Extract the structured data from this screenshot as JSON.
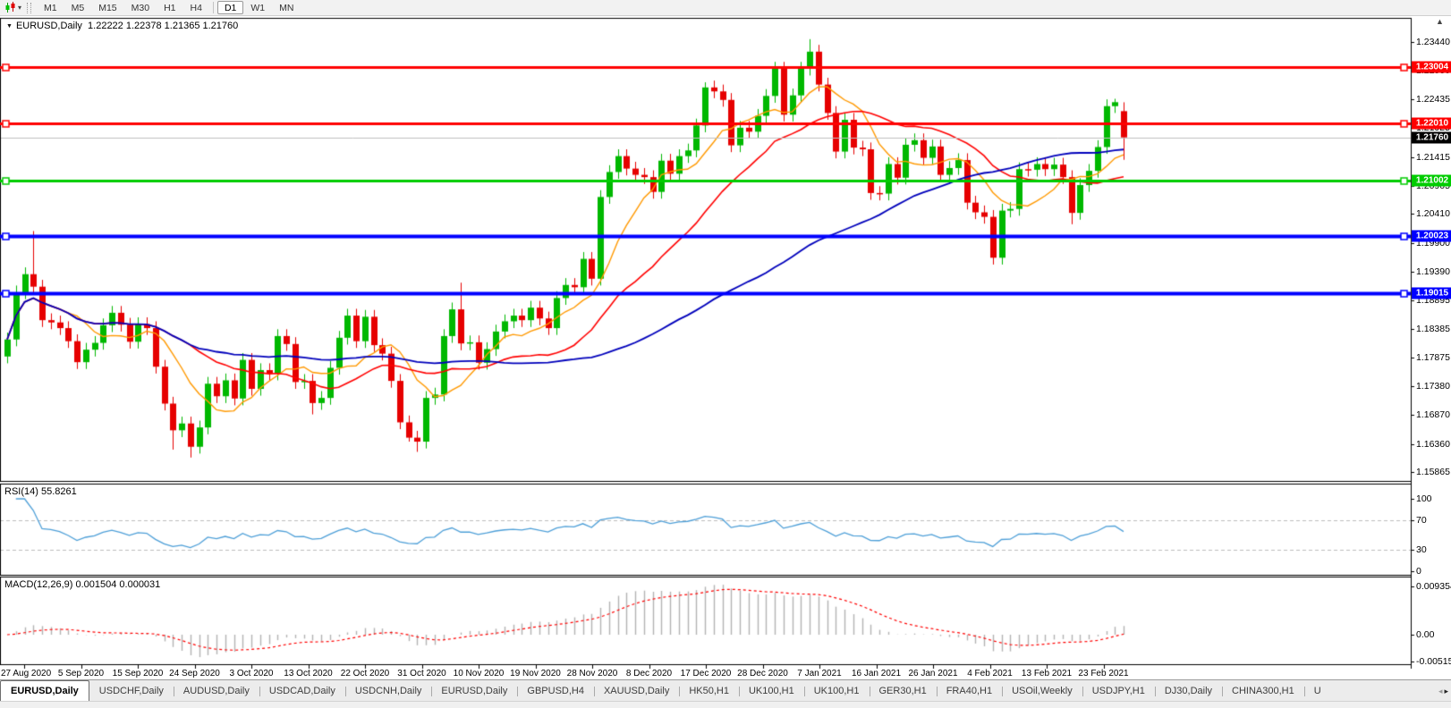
{
  "toolbar": {
    "timeframes": [
      "M1",
      "M5",
      "M15",
      "M30",
      "H1",
      "H4",
      "D1",
      "W1",
      "MN"
    ],
    "active_timeframe": "D1"
  },
  "chart": {
    "title": "EURUSD,Daily",
    "ohlc_text": "1.22222 1.22378 1.21365 1.21760",
    "current_price_label": "1.21760"
  },
  "price_axis": {
    "ticks": [
      "1.23440",
      "1.22930",
      "1.22435",
      "1.21925",
      "1.21415",
      "1.20905",
      "1.20410",
      "1.19900",
      "1.19390",
      "1.18895",
      "1.18385",
      "1.17875",
      "1.17380",
      "1.16870",
      "1.16360",
      "1.15865"
    ]
  },
  "date_axis": [
    "27 Aug 2020",
    "5 Sep 2020",
    "15 Sep 2020",
    "24 Sep 2020",
    "3 Oct 2020",
    "13 Oct 2020",
    "22 Oct 2020",
    "31 Oct 2020",
    "10 Nov 2020",
    "19 Nov 2020",
    "28 Nov 2020",
    "8 Dec 2020",
    "17 Dec 2020",
    "28 Dec 2020",
    "7 Jan 2021",
    "16 Jan 2021",
    "26 Jan 2021",
    "4 Feb 2021",
    "13 Feb 2021",
    "23 Feb 2021"
  ],
  "tabs": {
    "items": [
      "EURUSD,Daily",
      "USDCHF,Daily",
      "AUDUSD,Daily",
      "USDCAD,Daily",
      "USDCNH,Daily",
      "EURUSD,Daily",
      "GBPUSD,H4",
      "XAUUSD,Daily",
      "HK50,H1",
      "UK100,H1",
      "UK100,H1",
      "GER30,H1",
      "FRA40,H1",
      "USOil,Weekly",
      "USDJPY,H1",
      "DJ30,Daily",
      "CHINA300,H1",
      "U"
    ],
    "active_index": 0
  },
  "chart_data": {
    "type": "candlestick",
    "symbol": "EURUSD",
    "period": "Daily",
    "x_range": [
      "27 Aug 2020",
      "23 Feb 2021"
    ],
    "price_range": [
      1.15865,
      1.2344
    ],
    "last_bar": {
      "open": 1.22222,
      "high": 1.22378,
      "low": 1.21365,
      "close": 1.2176
    },
    "default_wick": 0.0012,
    "closes": [
      1.182,
      1.1903,
      1.1935,
      1.1913,
      1.1854,
      1.185,
      1.184,
      1.1817,
      1.178,
      1.1802,
      1.1814,
      1.1845,
      1.1867,
      1.1846,
      1.1816,
      1.1847,
      1.184,
      1.1772,
      1.1707,
      1.166,
      1.1672,
      1.1631,
      1.1665,
      1.1742,
      1.172,
      1.1748,
      1.1716,
      1.1784,
      1.1733,
      1.1766,
      1.176,
      1.1826,
      1.1812,
      1.1745,
      1.1747,
      1.1708,
      1.1717,
      1.177,
      1.1823,
      1.1862,
      1.1817,
      1.186,
      1.181,
      1.1795,
      1.1747,
      1.1674,
      1.1647,
      1.164,
      1.1717,
      1.1723,
      1.1826,
      1.1873,
      1.1813,
      1.1815,
      1.1779,
      1.1803,
      1.1834,
      1.1852,
      1.1862,
      1.1854,
      1.1876,
      1.1857,
      1.184,
      1.1893,
      1.1916,
      1.1912,
      1.1962,
      1.1927,
      1.2071,
      1.2115,
      1.2143,
      1.2121,
      1.211,
      1.2106,
      1.208,
      1.2135,
      1.2112,
      1.2143,
      1.2153,
      1.2197,
      1.2264,
      1.2257,
      1.2242,
      1.2162,
      1.2193,
      1.2186,
      1.2214,
      1.2249,
      1.2297,
      1.2216,
      1.225,
      1.2297,
      1.2327,
      1.2269,
      1.2219,
      1.2151,
      1.2207,
      1.2158,
      1.2155,
      1.2078,
      1.2077,
      1.2129,
      1.2105,
      1.2163,
      1.2171,
      1.214,
      1.216,
      1.211,
      1.2122,
      1.2136,
      1.2061,
      1.2044,
      1.2036,
      1.1964,
      1.2047,
      1.205,
      1.212,
      1.2119,
      1.2129,
      1.212,
      1.2128,
      1.2106,
      1.2043,
      1.2092,
      1.2117,
      1.2159,
      1.2231,
      1.2238,
      1.2176
    ],
    "open_overrides": {
      "0": 1.179,
      "128": 1.22222
    },
    "wick_overrides": {
      "3": {
        "h": 1.2011
      },
      "19": {
        "l": 1.1626
      },
      "21": {
        "l": 1.1612
      },
      "35": {
        "l": 1.1688
      },
      "46": {
        "l": 1.164
      },
      "47": {
        "l": 1.1622
      },
      "52": {
        "h": 1.192
      },
      "80": {
        "h": 1.2273
      },
      "92": {
        "h": 1.2349
      },
      "113": {
        "l": 1.1952
      },
      "122": {
        "l": 1.2023
      },
      "127": {
        "h": 1.2244
      },
      "128": {
        "h": 1.22378,
        "l": 1.21365
      }
    },
    "candle_colors": {
      "up": "#00b800",
      "down": "#e60000"
    },
    "overlays": [
      {
        "name": "MA-fast",
        "period": 8,
        "color": "#ff9900",
        "width": 1.4
      },
      {
        "name": "MA-mid",
        "period": 21,
        "color": "#ff0000",
        "width": 1.6
      },
      {
        "name": "MA-slow",
        "period": 55,
        "color": "#0000bb",
        "width": 1.8
      }
    ],
    "levels": [
      {
        "value": 1.23004,
        "label": "1.23004",
        "color": "#ff0000",
        "width": 3
      },
      {
        "value": 1.2201,
        "label": "1.22010",
        "color": "#ff0000",
        "width": 3
      },
      {
        "value": 1.21002,
        "label": "1.21002",
        "color": "#00cc00",
        "width": 3
      },
      {
        "value": 1.20023,
        "label": "1.20023",
        "color": "#0000ff",
        "width": 4
      },
      {
        "value": 1.19015,
        "label": "1.19015",
        "color": "#0000ff",
        "width": 4
      }
    ],
    "current_price": 1.2176,
    "current_price_line_color": "#c0c0c0",
    "indicators": [
      {
        "name": "RSI",
        "label": "RSI(14) 55.8261",
        "period": 14,
        "value": 55.8261,
        "color": "#4d9fd8",
        "range": [
          0,
          100
        ],
        "level_lines": [
          70,
          30
        ],
        "axis": [
          {
            "label": "100",
            "value": 100
          },
          {
            "label": "70",
            "value": 70
          },
          {
            "label": "30",
            "value": 30
          },
          {
            "label": "0",
            "value": 0
          }
        ]
      },
      {
        "name": "MACD",
        "label": "MACD(12,26,9) 0.001504 0.000031",
        "params": [
          12,
          26,
          9
        ],
        "main": 0.001504,
        "signal": 3.1e-05,
        "histogram_color": "#b3b3b3",
        "signal_color": "#ff0000",
        "axis": [
          {
            "label": "0.009354",
            "value": 0.009354
          },
          {
            "label": "0.00",
            "value": 0
          },
          {
            "label": "-0.005156",
            "value": -0.005156
          }
        ]
      }
    ]
  }
}
